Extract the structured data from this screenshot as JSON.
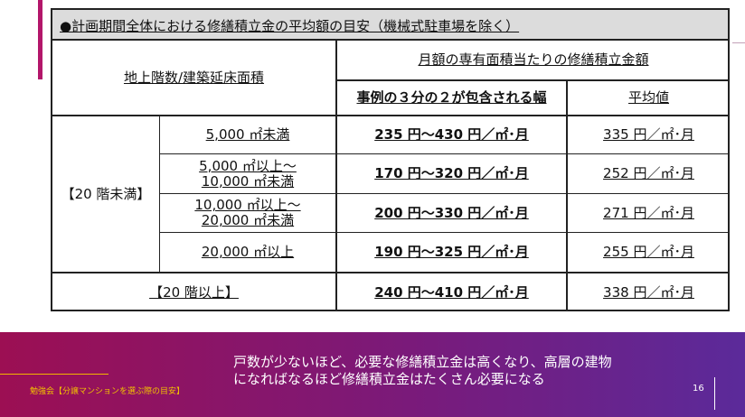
{
  "table": {
    "title": "●計画期間全体における修繕積立金の平均額の目安（機械式駐車場を除く）",
    "header_left": "地上階数/建築延床面積",
    "header_group": "月額の専有面積当たりの修繕積立金額",
    "header_range": "事例の３分の２が包含される幅",
    "header_average": "平均値",
    "group_under20": "【20 階未満】",
    "rows": [
      {
        "area_line1": "5,000 ㎡未満",
        "area_line2": "",
        "range": "235 円～430 円／㎡･月",
        "average": "335 円／㎡･月"
      },
      {
        "area_line1": "5,000 ㎡以上～",
        "area_line2": "10,000 ㎡未満",
        "range": "170 円～320 円／㎡･月",
        "average": "252 円／㎡･月"
      },
      {
        "area_line1": "10,000 ㎡以上～",
        "area_line2": "20,000 ㎡未満",
        "range": "200 円～330 円／㎡･月",
        "average": "271 円／㎡･月"
      },
      {
        "area_line1": "20,000 ㎡以上",
        "area_line2": "",
        "range": "190 円～325 円／㎡･月",
        "average": "255 円／㎡･月"
      }
    ],
    "over20": {
      "label": "【20 階以上】",
      "range": "240 円～410 円／㎡･月",
      "average": "338 円／㎡･月"
    }
  },
  "footer": {
    "label": "勉強会【分譲マンションを選ぶ際の目安】",
    "message_line1": "戸数が少ないほど、必要な修繕積立金は高くなり、高層の建物",
    "message_line2": "になればなるほど修繕積立金はたくさん必要になる",
    "page_number": "16"
  }
}
